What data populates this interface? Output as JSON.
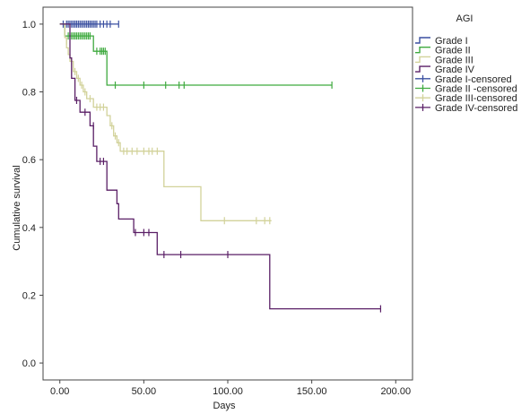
{
  "chart_data": {
    "type": "line",
    "step": true,
    "xlabel": "Days",
    "ylabel": "Cumulative survival",
    "xlim": [
      -10,
      210
    ],
    "ylim": [
      -0.05,
      1.05
    ],
    "xticks": [
      0,
      50,
      100,
      150,
      200
    ],
    "xtick_labels": [
      "0.00",
      "50.00",
      "100.00",
      "150.00",
      "200.00"
    ],
    "yticks": [
      0.0,
      0.2,
      0.4,
      0.6,
      0.8,
      1.0
    ],
    "ytick_labels": [
      "0.0",
      "0.2",
      "0.4",
      "0.6",
      "0.8",
      "1.0"
    ],
    "grid": false,
    "legend": {
      "title": "AGI",
      "placement": "right",
      "entries": [
        {
          "label": "Grade I",
          "color": "#3a4fa0",
          "kind": "line"
        },
        {
          "label": "Grade II",
          "color": "#3faa3f",
          "kind": "line"
        },
        {
          "label": "Grade III",
          "color": "#d2d29a",
          "kind": "line"
        },
        {
          "label": "Grade IV",
          "color": "#5a1f66",
          "kind": "line"
        },
        {
          "label": "Grade I-censored",
          "color": "#3a4fa0",
          "kind": "censor"
        },
        {
          "label": "Grade II -censored",
          "color": "#3faa3f",
          "kind": "censor"
        },
        {
          "label": "Grade III-censored",
          "color": "#d2d29a",
          "kind": "censor"
        },
        {
          "label": "Grade IV-censored",
          "color": "#5a1f66",
          "kind": "censor"
        }
      ]
    },
    "series": [
      {
        "name": "Grade I",
        "color": "#3a4fa0",
        "steps": [
          [
            0,
            1.0
          ],
          [
            35,
            1.0
          ]
        ],
        "censored": [
          [
            2,
            1.0
          ],
          [
            4,
            1.0
          ],
          [
            5,
            1.0
          ],
          [
            6,
            1.0
          ],
          [
            7,
            1.0
          ],
          [
            8,
            1.0
          ],
          [
            9,
            1.0
          ],
          [
            10,
            1.0
          ],
          [
            11,
            1.0
          ],
          [
            12,
            1.0
          ],
          [
            13,
            1.0
          ],
          [
            14,
            1.0
          ],
          [
            15,
            1.0
          ],
          [
            16,
            1.0
          ],
          [
            17,
            1.0
          ],
          [
            18,
            1.0
          ],
          [
            19,
            1.0
          ],
          [
            20,
            1.0
          ],
          [
            21,
            1.0
          ],
          [
            22,
            1.0
          ],
          [
            24,
            1.0
          ],
          [
            26,
            1.0
          ],
          [
            28,
            1.0
          ],
          [
            30,
            1.0
          ],
          [
            35,
            1.0
          ]
        ]
      },
      {
        "name": "Grade II",
        "color": "#3faa3f",
        "steps": [
          [
            0,
            1.0
          ],
          [
            3,
            1.0
          ],
          [
            3,
            0.965
          ],
          [
            20,
            0.965
          ],
          [
            20,
            0.92
          ],
          [
            28,
            0.92
          ],
          [
            28,
            0.82
          ],
          [
            162,
            0.82
          ]
        ],
        "censored": [
          [
            5,
            0.965
          ],
          [
            6,
            0.965
          ],
          [
            7,
            0.965
          ],
          [
            8,
            0.965
          ],
          [
            9,
            0.965
          ],
          [
            10,
            0.965
          ],
          [
            11,
            0.965
          ],
          [
            12,
            0.965
          ],
          [
            13,
            0.965
          ],
          [
            14,
            0.965
          ],
          [
            15,
            0.965
          ],
          [
            16,
            0.965
          ],
          [
            17,
            0.965
          ],
          [
            18,
            0.965
          ],
          [
            22,
            0.92
          ],
          [
            24,
            0.92
          ],
          [
            25,
            0.92
          ],
          [
            26,
            0.92
          ],
          [
            27,
            0.92
          ],
          [
            33,
            0.82
          ],
          [
            50,
            0.82
          ],
          [
            63,
            0.82
          ],
          [
            71,
            0.82
          ],
          [
            74,
            0.82
          ],
          [
            162,
            0.82
          ]
        ]
      },
      {
        "name": "Grade III",
        "color": "#d2d29a",
        "steps": [
          [
            0,
            1.0
          ],
          [
            3,
            1.0
          ],
          [
            3,
            0.96
          ],
          [
            4,
            0.96
          ],
          [
            4,
            0.93
          ],
          [
            5,
            0.93
          ],
          [
            5,
            0.91
          ],
          [
            6,
            0.91
          ],
          [
            6,
            0.89
          ],
          [
            8,
            0.89
          ],
          [
            8,
            0.86
          ],
          [
            10,
            0.86
          ],
          [
            10,
            0.84
          ],
          [
            12,
            0.84
          ],
          [
            12,
            0.82
          ],
          [
            14,
            0.82
          ],
          [
            14,
            0.8
          ],
          [
            16,
            0.8
          ],
          [
            16,
            0.78
          ],
          [
            20,
            0.78
          ],
          [
            20,
            0.755
          ],
          [
            28,
            0.755
          ],
          [
            28,
            0.73
          ],
          [
            30,
            0.73
          ],
          [
            30,
            0.7
          ],
          [
            32,
            0.7
          ],
          [
            32,
            0.67
          ],
          [
            34,
            0.67
          ],
          [
            34,
            0.65
          ],
          [
            36,
            0.65
          ],
          [
            36,
            0.625
          ],
          [
            62,
            0.625
          ],
          [
            62,
            0.52
          ],
          [
            84,
            0.52
          ],
          [
            84,
            0.42
          ],
          [
            126,
            0.42
          ]
        ],
        "censored": [
          [
            4,
            0.95
          ],
          [
            7,
            0.89
          ],
          [
            9,
            0.86
          ],
          [
            11,
            0.84
          ],
          [
            13,
            0.82
          ],
          [
            15,
            0.8
          ],
          [
            18,
            0.78
          ],
          [
            22,
            0.755
          ],
          [
            24,
            0.755
          ],
          [
            26,
            0.755
          ],
          [
            31,
            0.7
          ],
          [
            33,
            0.67
          ],
          [
            35,
            0.65
          ],
          [
            38,
            0.625
          ],
          [
            40,
            0.625
          ],
          [
            43,
            0.625
          ],
          [
            46,
            0.625
          ],
          [
            50,
            0.625
          ],
          [
            53,
            0.625
          ],
          [
            55,
            0.625
          ],
          [
            58,
            0.625
          ],
          [
            98,
            0.42
          ],
          [
            117,
            0.42
          ],
          [
            122,
            0.42
          ],
          [
            125,
            0.42
          ]
        ]
      },
      {
        "name": "Grade IV",
        "color": "#5a1f66",
        "steps": [
          [
            0,
            1.0
          ],
          [
            6,
            1.0
          ],
          [
            6,
            0.9
          ],
          [
            7,
            0.9
          ],
          [
            7,
            0.84
          ],
          [
            9,
            0.84
          ],
          [
            9,
            0.775
          ],
          [
            12,
            0.775
          ],
          [
            12,
            0.74
          ],
          [
            18,
            0.74
          ],
          [
            18,
            0.7
          ],
          [
            20,
            0.7
          ],
          [
            20,
            0.64
          ],
          [
            22,
            0.64
          ],
          [
            22,
            0.595
          ],
          [
            28,
            0.595
          ],
          [
            28,
            0.51
          ],
          [
            34,
            0.51
          ],
          [
            34,
            0.47
          ],
          [
            35,
            0.47
          ],
          [
            35,
            0.425
          ],
          [
            44,
            0.425
          ],
          [
            44,
            0.385
          ],
          [
            58,
            0.385
          ],
          [
            58,
            0.32
          ],
          [
            125,
            0.32
          ],
          [
            125,
            0.16
          ],
          [
            191,
            0.16
          ]
        ],
        "censored": [
          [
            10,
            0.775
          ],
          [
            15,
            0.74
          ],
          [
            20,
            0.7
          ],
          [
            24,
            0.595
          ],
          [
            26,
            0.595
          ],
          [
            45,
            0.385
          ],
          [
            50,
            0.385
          ],
          [
            53,
            0.385
          ],
          [
            62,
            0.32
          ],
          [
            72,
            0.32
          ],
          [
            100,
            0.32
          ],
          [
            191,
            0.16
          ]
        ]
      }
    ]
  }
}
